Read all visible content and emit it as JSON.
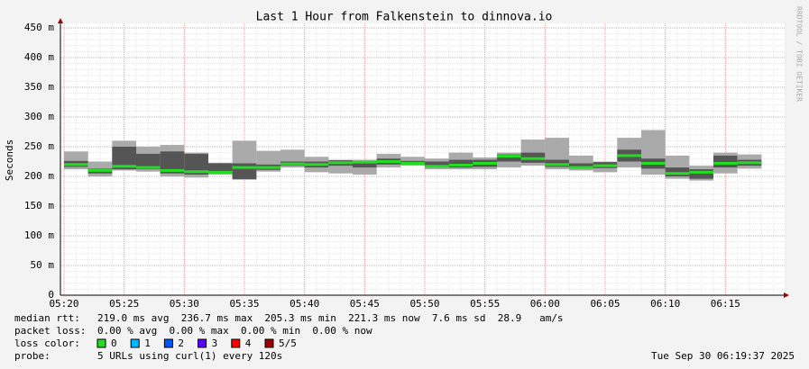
{
  "chart_data": {
    "type": "smokeping",
    "title": "Last 1 Hour from Falkenstein to dinnova.io",
    "y_label": "Seconds",
    "side_label": "RRDTOOL / TOBI OETIKER",
    "x": [
      "05:20",
      "05:22",
      "05:24",
      "05:26",
      "05:28",
      "05:30",
      "05:32",
      "05:34",
      "05:36",
      "05:38",
      "05:40",
      "05:42",
      "05:44",
      "05:46",
      "05:48",
      "05:50",
      "05:52",
      "05:54",
      "05:56",
      "05:58",
      "06:00",
      "06:02",
      "06:04",
      "06:06",
      "06:08",
      "06:10",
      "06:12",
      "06:14",
      "06:16"
    ],
    "median": [
      220,
      210,
      217,
      215,
      210,
      208,
      207,
      215,
      215,
      221,
      220,
      223,
      224,
      225,
      222,
      217,
      219,
      222,
      234,
      230,
      220,
      215,
      218,
      235,
      222,
      205,
      207,
      222,
      223
    ],
    "min": [
      212,
      200,
      210,
      208,
      200,
      198,
      203,
      195,
      208,
      215,
      207,
      205,
      203,
      215,
      218,
      212,
      212,
      212,
      215,
      218,
      212,
      210,
      207,
      215,
      203,
      196,
      193,
      205,
      213
    ],
    "max": [
      242,
      225,
      260,
      250,
      253,
      240,
      223,
      260,
      243,
      245,
      233,
      228,
      228,
      238,
      233,
      230,
      240,
      232,
      240,
      262,
      265,
      235,
      225,
      265,
      278,
      235,
      218,
      240,
      237
    ],
    "inner_low": [
      216,
      205,
      212,
      212,
      205,
      203,
      205,
      195,
      211,
      218,
      215,
      218,
      215,
      220,
      220,
      215,
      215,
      216,
      225,
      223,
      216,
      213,
      214,
      225,
      213,
      200,
      196,
      215,
      218
    ],
    "inner_high": [
      226,
      213,
      250,
      238,
      242,
      238,
      222,
      222,
      220,
      225,
      225,
      227,
      225,
      230,
      226,
      225,
      228,
      228,
      237,
      240,
      228,
      222,
      224,
      245,
      230,
      215,
      212,
      235,
      228
    ],
    "median_color": "#22dd22",
    "outer_color": "#aaaaaa",
    "inner_color": "#555555",
    "xlim": [
      "05:20",
      "06:20"
    ],
    "xticks": [
      "05:20",
      "05:25",
      "05:30",
      "05:35",
      "05:40",
      "05:45",
      "05:50",
      "05:55",
      "06:00",
      "06:05",
      "06:10",
      "06:15"
    ],
    "ylim": [
      0,
      450
    ],
    "yticks": [
      0,
      {
        "value": 50,
        "label": "50 m"
      },
      {
        "value": 100,
        "label": "100 m"
      },
      {
        "value": 150,
        "label": "150 m"
      },
      {
        "value": 200,
        "label": "200 m"
      },
      {
        "value": 250,
        "label": "250 m"
      },
      {
        "value": 300,
        "label": "300 m"
      },
      {
        "value": 350,
        "label": "350 m"
      },
      {
        "value": 400,
        "label": "400 m"
      },
      {
        "value": 450,
        "label": "450 m"
      }
    ],
    "grid": true,
    "footer": {
      "rtt_label": "median rtt:",
      "rtt": "219.0 ms avg  236.7 ms max  205.3 ms min  221.3 ms now  7.6 ms sd  28.9   am/s",
      "loss_label": "packet loss:",
      "loss": "0.00 % avg  0.00 % max  0.00 % min  0.00 % now",
      "loss_color_label": "loss color:",
      "loss_colors": [
        {
          "label": "0",
          "color": "#22dd22"
        },
        {
          "label": "1",
          "color": "#00b8ff"
        },
        {
          "label": "2",
          "color": "#0059ff"
        },
        {
          "label": "3",
          "color": "#5e00ff"
        },
        {
          "label": "4",
          "color": "#ff0000"
        },
        {
          "label": "5/5",
          "color": "#a00000"
        }
      ],
      "probe_label": "probe:",
      "probe": "5 URLs using curl(1) every 120s",
      "date": "Tue Sep 30 06:19:37 2025"
    }
  }
}
